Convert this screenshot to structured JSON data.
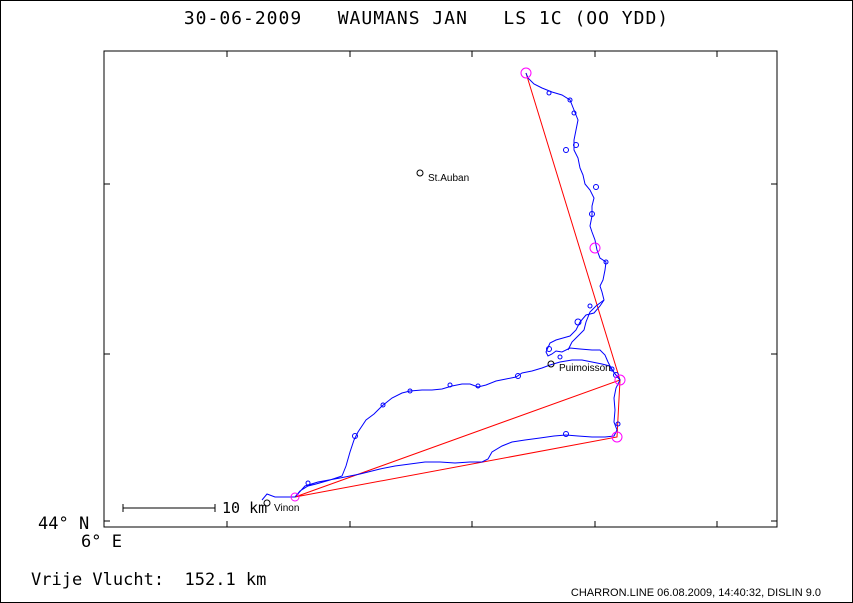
{
  "header": {
    "title": "30-06-2009   WAUMANS JAN   LS 1C (OO YDD)"
  },
  "axes": {
    "lat_label": "44° N",
    "lon_label": "6° E"
  },
  "towns": [
    {
      "name": "St.Auban"
    },
    {
      "name": "Puimoisson"
    },
    {
      "name": "Vinon"
    }
  ],
  "scale_bar": {
    "label": "10 km"
  },
  "flight": {
    "distance_label": "Vrije Vlucht:  152.1 km"
  },
  "footer": {
    "text": "CHARRON.LINE 06.08.2009, 14:40:32, DISLIN 9.0"
  },
  "colors": {
    "track": "#0000ff",
    "task": "#ff0000",
    "turnpoint": "#ff00ff",
    "frame": "#000000"
  }
}
